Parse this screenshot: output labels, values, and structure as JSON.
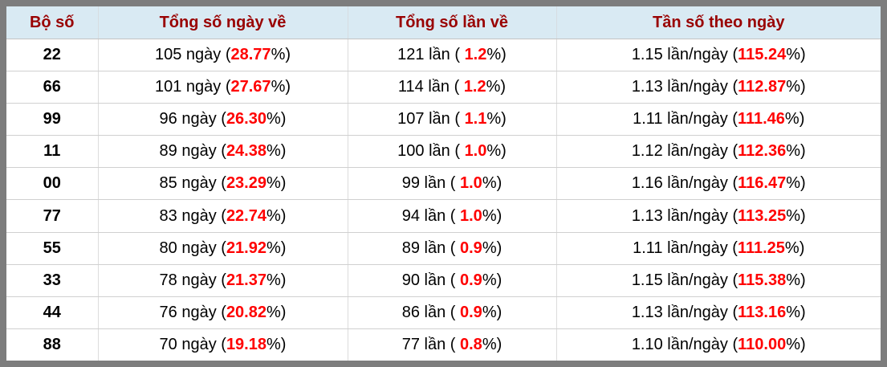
{
  "table": {
    "headers": [
      {
        "label": "Bộ số"
      },
      {
        "label": "Tổng số ngày về"
      },
      {
        "label": "Tổng số lần về"
      },
      {
        "label": "Tần số theo ngày"
      }
    ],
    "rows": [
      {
        "pair": "22",
        "days": {
          "pre": "105 ngày (",
          "red": "28.77",
          "post": "%)"
        },
        "times": {
          "pre": "121 lần ( ",
          "red": "1.2",
          "post": "%)"
        },
        "freq": {
          "pre": "1.15 lần/ngày (",
          "red": "115.24",
          "post": "%)"
        }
      },
      {
        "pair": "66",
        "days": {
          "pre": "101 ngày (",
          "red": "27.67",
          "post": "%)"
        },
        "times": {
          "pre": "114 lần ( ",
          "red": "1.2",
          "post": "%)"
        },
        "freq": {
          "pre": "1.13 lần/ngày (",
          "red": "112.87",
          "post": "%)"
        }
      },
      {
        "pair": "99",
        "days": {
          "pre": "96 ngày (",
          "red": "26.30",
          "post": "%)"
        },
        "times": {
          "pre": "107 lần ( ",
          "red": "1.1",
          "post": "%)"
        },
        "freq": {
          "pre": "1.11 lần/ngày (",
          "red": "111.46",
          "post": "%)"
        }
      },
      {
        "pair": "11",
        "days": {
          "pre": "89 ngày (",
          "red": "24.38",
          "post": "%)"
        },
        "times": {
          "pre": "100 lần ( ",
          "red": "1.0",
          "post": "%)"
        },
        "freq": {
          "pre": "1.12 lần/ngày (",
          "red": "112.36",
          "post": "%)"
        }
      },
      {
        "pair": "00",
        "days": {
          "pre": "85 ngày (",
          "red": "23.29",
          "post": "%)"
        },
        "times": {
          "pre": "99 lần ( ",
          "red": "1.0",
          "post": "%)"
        },
        "freq": {
          "pre": "1.16 lần/ngày (",
          "red": "116.47",
          "post": "%)"
        }
      },
      {
        "pair": "77",
        "days": {
          "pre": "83 ngày (",
          "red": "22.74",
          "post": "%)"
        },
        "times": {
          "pre": "94 lần ( ",
          "red": "1.0",
          "post": "%)"
        },
        "freq": {
          "pre": "1.13 lần/ngày (",
          "red": "113.25",
          "post": "%)"
        }
      },
      {
        "pair": "55",
        "days": {
          "pre": "80 ngày (",
          "red": "21.92",
          "post": "%)"
        },
        "times": {
          "pre": "89 lần ( ",
          "red": "0.9",
          "post": "%)"
        },
        "freq": {
          "pre": "1.11 lần/ngày (",
          "red": "111.25",
          "post": "%)"
        }
      },
      {
        "pair": "33",
        "days": {
          "pre": "78 ngày (",
          "red": "21.37",
          "post": "%)"
        },
        "times": {
          "pre": "90 lần ( ",
          "red": "0.9",
          "post": "%)"
        },
        "freq": {
          "pre": "1.15 lần/ngày (",
          "red": "115.38",
          "post": "%)"
        }
      },
      {
        "pair": "44",
        "days": {
          "pre": "76 ngày (",
          "red": "20.82",
          "post": "%)"
        },
        "times": {
          "pre": "86 lần ( ",
          "red": "0.9",
          "post": "%)"
        },
        "freq": {
          "pre": "1.13 lần/ngày (",
          "red": "113.16",
          "post": "%)"
        }
      },
      {
        "pair": "88",
        "days": {
          "pre": "70 ngày (",
          "red": "19.18",
          "post": "%)"
        },
        "times": {
          "pre": "77 lần ( ",
          "red": "0.8",
          "post": "%)"
        },
        "freq": {
          "pre": "1.10 lần/ngày (",
          "red": "110.00",
          "post": "%)"
        }
      }
    ]
  },
  "colors": {
    "frame": "#7d7d7d",
    "header_bg": "#d9eaf3",
    "header_text": "#990000",
    "body_text": "#000000",
    "highlight": "#ff0000",
    "row_border": "#d0d0d0"
  }
}
